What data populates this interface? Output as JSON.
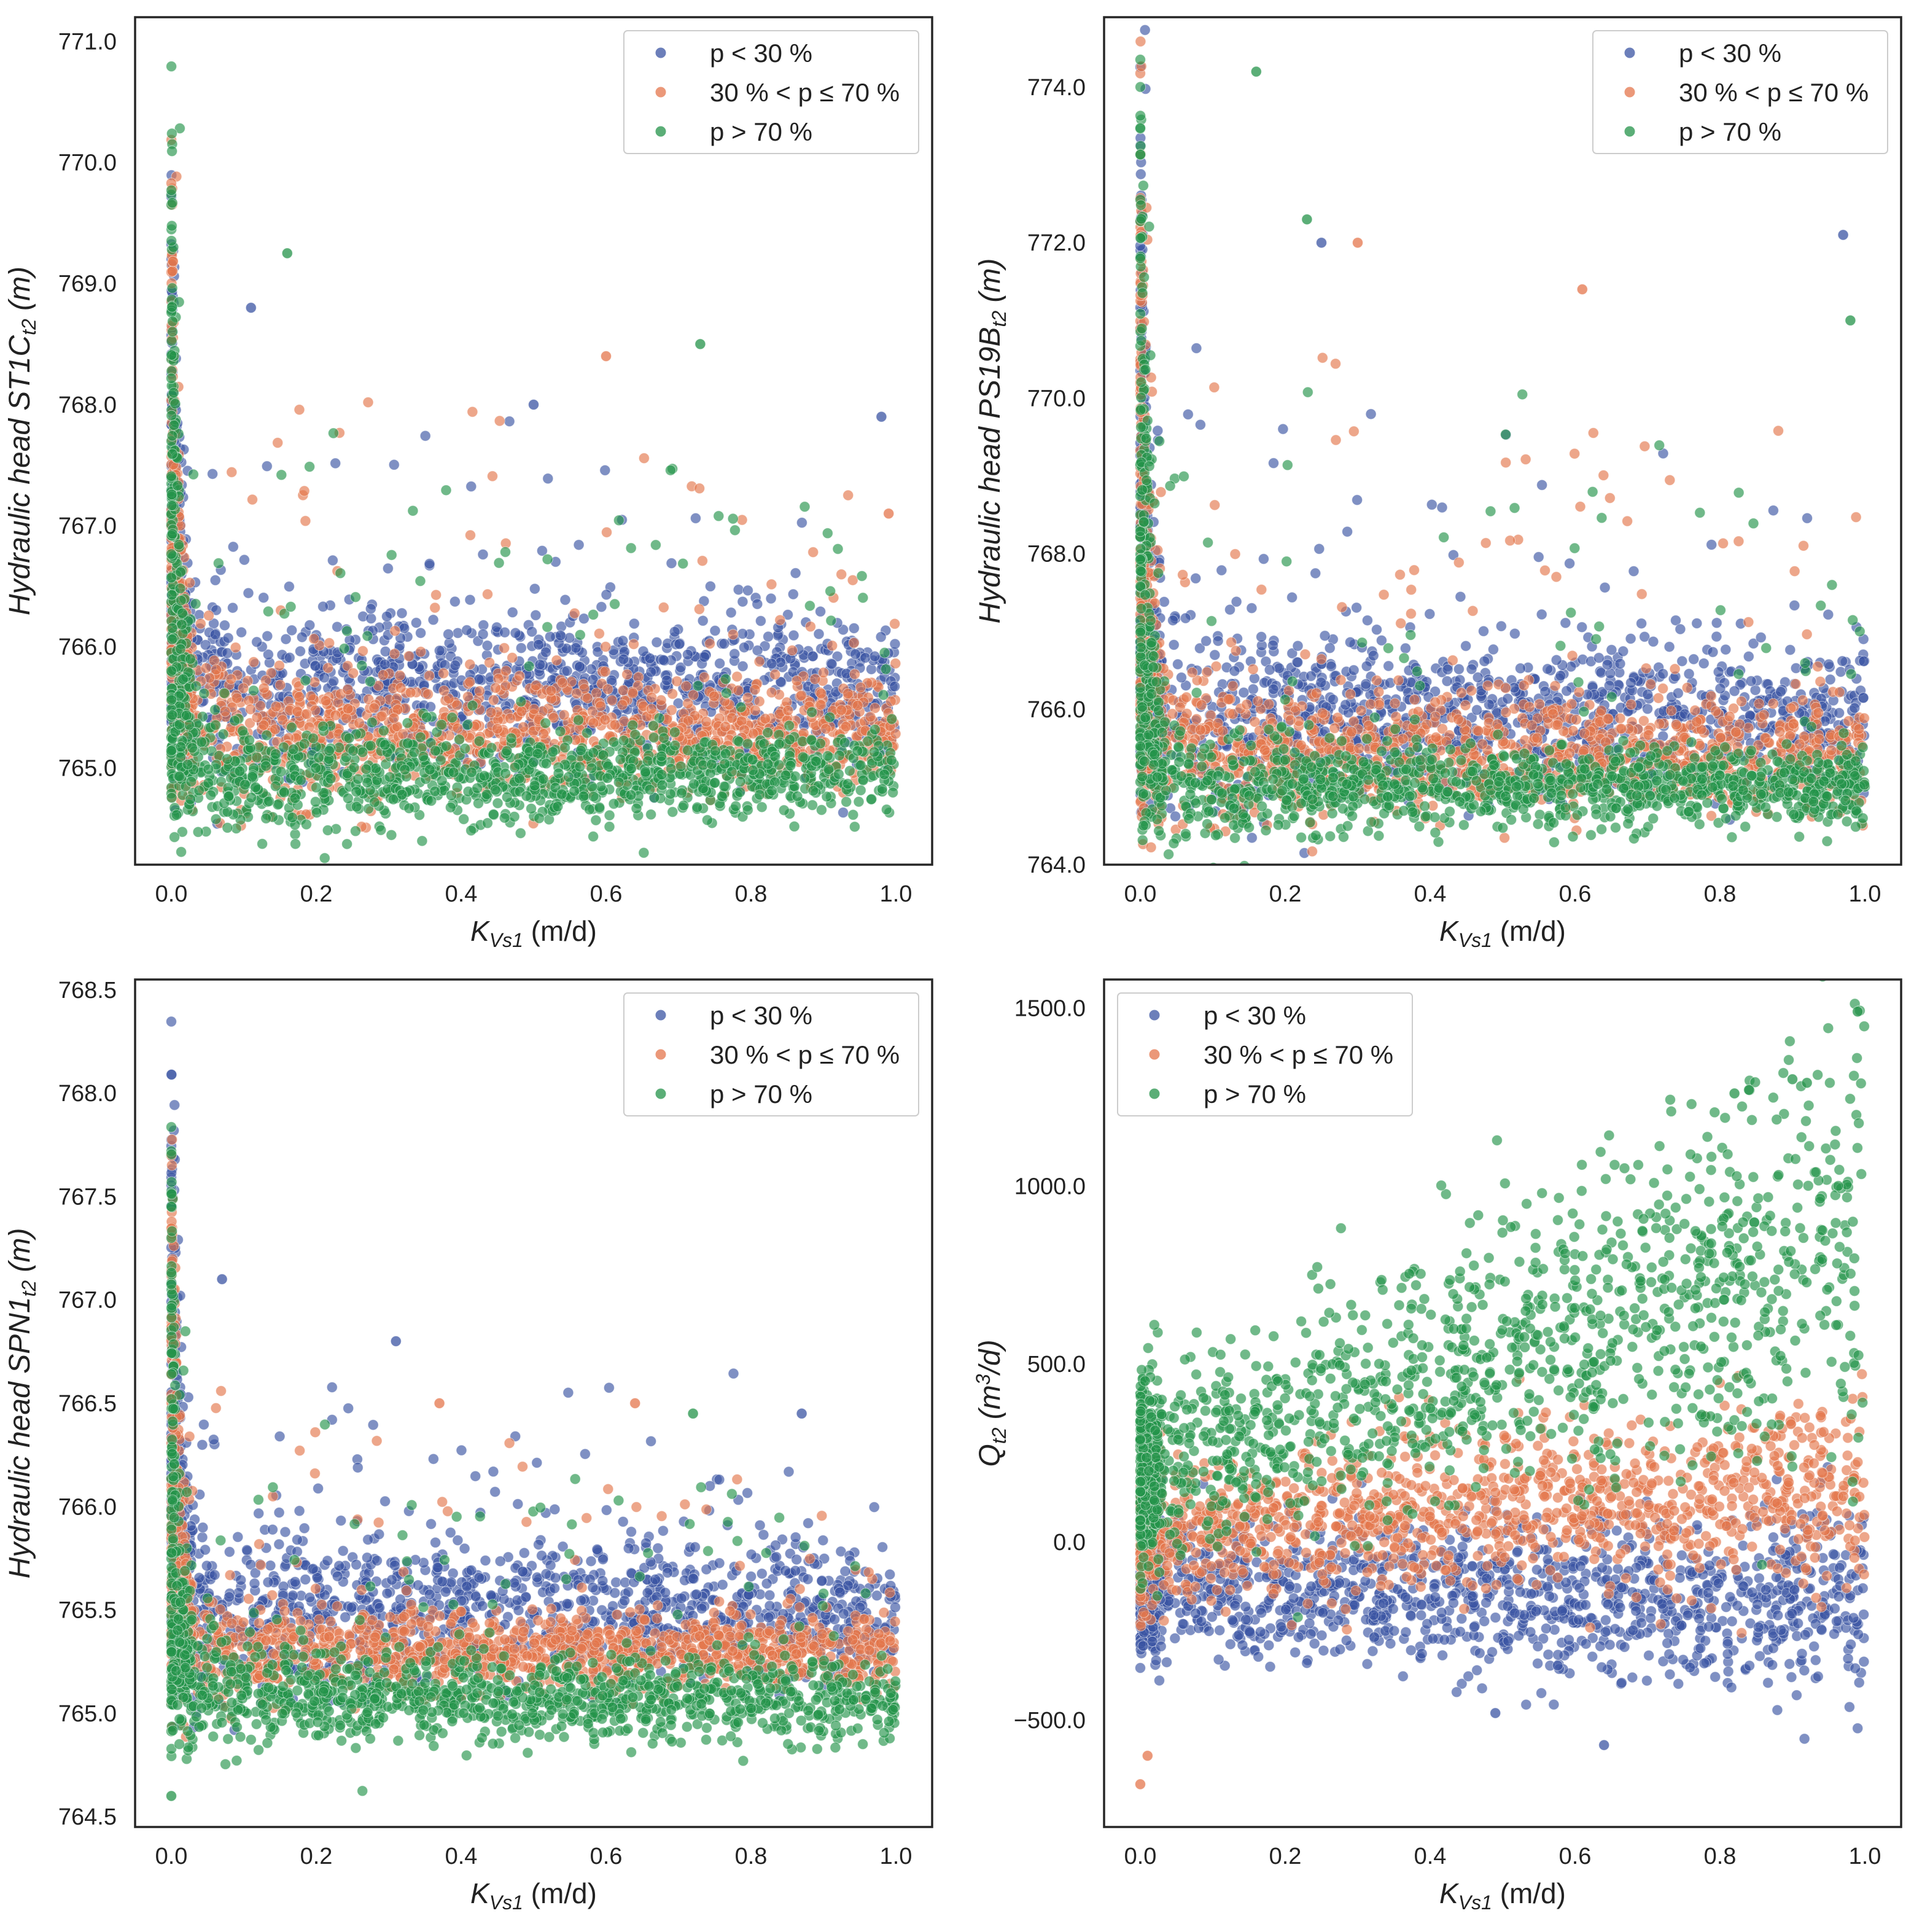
{
  "colors": {
    "p_lt_30": "#3b54a3",
    "p_30_70": "#e4764c",
    "p_gt_70": "#24934a"
  },
  "chart_data": [
    {
      "type": "scatter",
      "panel": "top-left",
      "xlabel": {
        "main": "K",
        "sub": "Vs1",
        "unit": "(m/d)"
      },
      "ylabel": {
        "prefix": "Hydraulic head ST1C",
        "sub": "t2",
        "unit": "(m)"
      },
      "xlim": [
        -0.05,
        1.05
      ],
      "ylim": [
        764.2,
        771.2
      ],
      "xticks": [
        0.0,
        0.2,
        0.4,
        0.6,
        0.8,
        1.0
      ],
      "xtick_labels": [
        "0.0",
        "0.2",
        "0.4",
        "0.6",
        "0.8",
        "1.0"
      ],
      "yticks": [
        765.0,
        766.0,
        767.0,
        768.0,
        769.0,
        770.0,
        771.0
      ],
      "ytick_labels": [
        "765.0",
        "766.0",
        "767.0",
        "768.0",
        "769.0",
        "770.0",
        "771.0"
      ],
      "legend": {
        "placement": "top-right",
        "labels": [
          "p < 30 %",
          "30 % < p ≤ 70 %",
          "p > 70 %"
        ]
      },
      "series": [
        {
          "name": "p < 30 %",
          "color": "#3b54a3",
          "band": {
            "center": 765.65,
            "spread": 0.28,
            "spike_max": 769.9,
            "upper_tail": 768.0
          },
          "outliers": [
            [
              0.11,
              768.8
            ],
            [
              0.5,
              768.0
            ],
            [
              0.98,
              767.9
            ]
          ]
        },
        {
          "name": "30 % < p ≤ 70 %",
          "color": "#e4764c",
          "band": {
            "center": 765.3,
            "spread": 0.22,
            "spike_max": 770.2,
            "upper_tail": 768.3
          },
          "outliers": [
            [
              0.6,
              768.4
            ],
            [
              0.99,
              767.1
            ]
          ]
        },
        {
          "name": "p > 70 %",
          "color": "#24934a",
          "band": {
            "center": 764.95,
            "spread": 0.18,
            "spike_max": 770.8,
            "upper_tail": 768.5
          },
          "outliers": [
            [
              0.16,
              769.25
            ],
            [
              0.73,
              768.5
            ]
          ]
        }
      ]
    },
    {
      "type": "scatter",
      "panel": "top-right",
      "xlabel": {
        "main": "K",
        "sub": "Vs1",
        "unit": "(m/d)"
      },
      "ylabel": {
        "prefix": "Hydraulic head PS19B",
        "sub": "t2",
        "unit": "(m)"
      },
      "xlim": [
        -0.05,
        1.05
      ],
      "ylim": [
        764.0,
        774.9
      ],
      "xticks": [
        0.0,
        0.2,
        0.4,
        0.6,
        0.8,
        1.0
      ],
      "xtick_labels": [
        "0.0",
        "0.2",
        "0.4",
        "0.6",
        "0.8",
        "1.0"
      ],
      "yticks": [
        764.0,
        766.0,
        768.0,
        770.0,
        772.0,
        774.0
      ],
      "ytick_labels": [
        "764.0",
        "766.0",
        "768.0",
        "770.0",
        "772.0",
        "774.0"
      ],
      "legend": {
        "placement": "top-right",
        "labels": [
          "p < 30 %",
          "30 % < p ≤ 70 %",
          "p > 70 %"
        ]
      },
      "series": [
        {
          "name": "p < 30 %",
          "color": "#3b54a3",
          "band": {
            "center": 765.9,
            "spread": 0.45,
            "spike_max": 773.6,
            "upper_tail": 770.5
          },
          "outliers": [
            [
              0.97,
              772.1
            ],
            [
              0.25,
              772.0
            ]
          ]
        },
        {
          "name": "30 % < p ≤ 70 %",
          "color": "#e4764c",
          "band": {
            "center": 765.45,
            "spread": 0.35,
            "spike_max": 773.3,
            "upper_tail": 771.0
          },
          "outliers": [
            [
              0.61,
              771.4
            ],
            [
              0.3,
              772.0
            ]
          ]
        },
        {
          "name": "p > 70 %",
          "color": "#24934a",
          "band": {
            "center": 765.0,
            "spread": 0.25,
            "spike_max": 774.4,
            "upper_tail": 771.5
          },
          "outliers": [
            [
              0.16,
              774.2
            ],
            [
              0.23,
              772.3
            ],
            [
              0.98,
              771.0
            ]
          ]
        }
      ]
    },
    {
      "type": "scatter",
      "panel": "bottom-left",
      "xlabel": {
        "main": "K",
        "sub": "Vs1",
        "unit": "(m/d)"
      },
      "ylabel": {
        "prefix": "Hydraulic head SPN1",
        "sub": "t2",
        "unit": "(m)"
      },
      "xlim": [
        -0.05,
        1.05
      ],
      "ylim": [
        764.45,
        768.55
      ],
      "xticks": [
        0.0,
        0.2,
        0.4,
        0.6,
        0.8,
        1.0
      ],
      "xtick_labels": [
        "0.0",
        "0.2",
        "0.4",
        "0.6",
        "0.8",
        "1.0"
      ],
      "yticks": [
        764.5,
        765.0,
        765.5,
        766.0,
        766.5,
        767.0,
        767.5,
        768.0,
        768.5
      ],
      "ytick_labels": [
        "764.5",
        "765.0",
        "765.5",
        "766.0",
        "766.5",
        "767.0",
        "767.5",
        "768.0",
        "768.5"
      ],
      "legend": {
        "placement": "top-right",
        "labels": [
          "p < 30 %",
          "30 % < p ≤ 70 %",
          "p > 70 %"
        ]
      },
      "series": [
        {
          "name": "p < 30 %",
          "color": "#3b54a3",
          "band": {
            "center": 765.5,
            "spread": 0.16,
            "spike_max": 768.35,
            "upper_tail": 766.6
          },
          "outliers": [
            [
              0.07,
              767.1
            ],
            [
              0.31,
              766.8
            ],
            [
              0.87,
              766.45
            ]
          ]
        },
        {
          "name": "30 % < p ≤ 70 %",
          "color": "#e4764c",
          "band": {
            "center": 765.3,
            "spread": 0.09,
            "spike_max": 768.05,
            "upper_tail": 766.5
          },
          "outliers": [
            [
              0.37,
              766.5
            ],
            [
              0.64,
              766.5
            ]
          ]
        },
        {
          "name": "p > 70 %",
          "color": "#24934a",
          "band": {
            "center": 765.07,
            "spread": 0.1,
            "spike_max": 767.7,
            "upper_tail": 766.4
          },
          "outliers": [
            [
              0.72,
              766.45
            ],
            [
              0.0,
              764.6
            ]
          ]
        }
      ]
    },
    {
      "type": "scatter",
      "panel": "bottom-right",
      "xlabel": {
        "main": "K",
        "sub": "Vs1",
        "unit": "(m/d)"
      },
      "ylabel": {
        "prefix": "Q",
        "sub": "t2",
        "unit_pre": "(m",
        "sup": "3",
        "unit_post": "/d)"
      },
      "xlim": [
        -0.05,
        1.05
      ],
      "ylim": [
        -800,
        1580
      ],
      "xticks": [
        0.0,
        0.2,
        0.4,
        0.6,
        0.8,
        1.0
      ],
      "xtick_labels": [
        "0.0",
        "0.2",
        "0.4",
        "0.6",
        "0.8",
        "1.0"
      ],
      "yticks": [
        -500,
        0,
        500,
        1000,
        1500
      ],
      "ytick_labels": [
        "−500.0",
        "0.0",
        "500.0",
        "1000.0",
        "1500.0"
      ],
      "legend": {
        "placement": "top-left",
        "labels": [
          "p < 30 %",
          "30 % < p ≤ 70 %",
          "p > 70 %"
        ]
      },
      "series": [
        {
          "name": "p < 30 %",
          "color": "#3b54a3",
          "band": {
            "center": -130,
            "spread": 90,
            "slope": -40
          },
          "outliers": [
            [
              0.64,
              -570
            ],
            [
              0.49,
              -480
            ]
          ]
        },
        {
          "name": "30 % < p ≤ 70 %",
          "color": "#e4764c",
          "band": {
            "center": 30,
            "spread": 90,
            "slope": 120
          },
          "outliers": [
            [
              0.0,
              -680
            ],
            [
              0.01,
              -600
            ]
          ]
        },
        {
          "name": "p > 70 %",
          "color": "#24934a",
          "band": {
            "center": 200,
            "spread": 120,
            "slope": 650
          },
          "outliers": [
            [
              0.99,
              1490
            ],
            [
              0.9,
              1300
            ],
            [
              0.92,
              1290
            ],
            [
              0.84,
              1270
            ],
            [
              0.82,
              1260
            ]
          ]
        }
      ]
    }
  ]
}
